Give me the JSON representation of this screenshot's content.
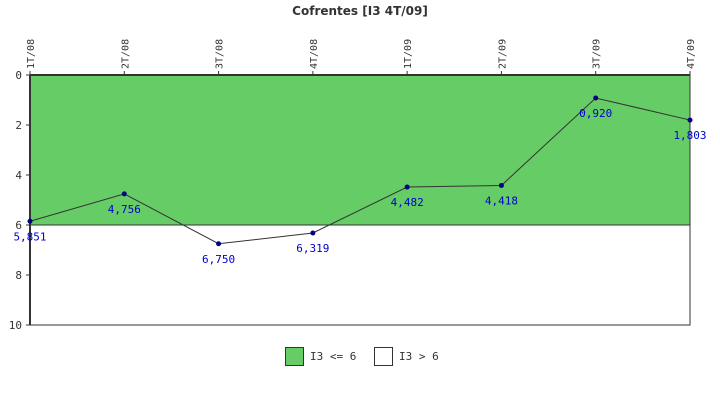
{
  "chart_data": {
    "type": "line",
    "title": "Cofrentes [I3 4T/09]",
    "categories": [
      "1T/08",
      "2T/08",
      "3T/08",
      "4T/08",
      "1T/09",
      "2T/09",
      "3T/09",
      "4T/09"
    ],
    "series": [
      {
        "values": [
          5.851,
          4.756,
          6.75,
          6.319,
          4.482,
          4.418,
          0.92,
          1.803
        ],
        "value_labels": [
          "5,851",
          "4,756",
          "6,750",
          "6,319",
          "4,482",
          "4,418",
          "0,920",
          "1,803"
        ]
      }
    ],
    "ylim": [
      0,
      10
    ],
    "y_inverted": true,
    "yticks": [
      0,
      2,
      4,
      6,
      8,
      10
    ],
    "threshold": 6,
    "bands": [
      {
        "label": "I3 <= 6",
        "range": [
          0,
          6
        ],
        "color": "#66cc66"
      },
      {
        "label": "I3 > 6",
        "range": [
          6,
          10
        ],
        "color": "#ffffff"
      }
    ],
    "legend_position": "bottom-center",
    "colors": {
      "line": "#333333",
      "marker": "#000080",
      "value_label": "#0000cc",
      "axis": "#333333"
    }
  }
}
